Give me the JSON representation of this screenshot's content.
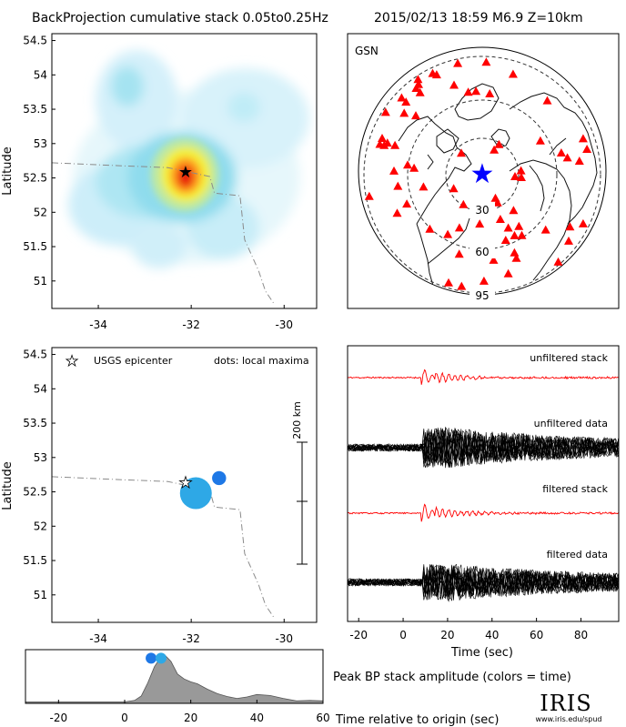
{
  "header": {
    "title": "BackProjection cumulative stack 0.05to0.25Hz",
    "event": "2015/02/13 18:59  M6.9  Z=10km"
  },
  "colors": {
    "stack_trace": "#ff0000",
    "data_trace": "#000000",
    "station_marker": "#ff0000",
    "event_marker": "#0000ff",
    "maxima_early": "#1e78e6",
    "maxima_late": "#2ea8e6",
    "envelope_fill": "#999999"
  },
  "chart_data": [
    {
      "type": "heatmap",
      "panel": "top-left",
      "ylabel": "Latitude",
      "xlabel": "",
      "xlim": [
        -35,
        -29.3
      ],
      "ylim": [
        50.6,
        54.6
      ],
      "xticks": [
        -34,
        -32,
        -30
      ],
      "yticks": [
        51,
        51.5,
        52,
        52.5,
        53,
        53.5,
        54,
        54.5
      ],
      "xtick_labels": [
        "-34",
        "-32",
        "-30"
      ],
      "ytick_labels": [
        "51",
        "51.5",
        "52",
        "52.5",
        "53",
        "53.5",
        "54",
        "54.5"
      ],
      "peak": {
        "lon": -31.9,
        "lat": 52.6
      },
      "epicenter": {
        "lon": -31.9,
        "lat": 52.6
      },
      "colormap": [
        "#ffffff",
        "#bff0fb",
        "#77ddee",
        "#b6e9a8",
        "#f6ef3a",
        "#ff9a1e",
        "#e8220e"
      ],
      "boundary": [
        [
          -35,
          52.72
        ],
        [
          -33.6,
          52.68
        ],
        [
          -32.5,
          52.65
        ],
        [
          -31.6,
          52.52
        ],
        [
          -31.5,
          52.28
        ],
        [
          -30.95,
          52.24
        ],
        [
          -30.85,
          51.6
        ],
        [
          -30.55,
          51.15
        ],
        [
          -30.4,
          50.85
        ],
        [
          -30.2,
          50.65
        ]
      ]
    },
    {
      "type": "scatter",
      "panel": "top-right",
      "title": "GSN",
      "distance_rings": [
        "30",
        "60",
        "95"
      ],
      "station_count": 72
    },
    {
      "type": "scatter",
      "panel": "middle-left",
      "ylabel": "Latitude",
      "xlim": [
        -35,
        -29.3
      ],
      "ylim": [
        50.6,
        54.6
      ],
      "xticks": [
        -34,
        -32,
        -30
      ],
      "yticks": [
        51,
        51.5,
        52,
        52.5,
        53,
        53.5,
        54,
        54.5
      ],
      "xtick_labels": [
        "-34",
        "-32",
        "-30"
      ],
      "ytick_labels": [
        "51",
        "51.5",
        "52",
        "52.5",
        "53",
        "53.5",
        "54",
        "54.5"
      ],
      "legend_epicenter": "USGS epicenter",
      "legend_maxima": "dots: local maxima",
      "scale_label": "200 km",
      "epicenter": {
        "lon": -31.9,
        "lat": 52.6
      },
      "local_maxima": [
        {
          "lon": -31.9,
          "lat": 52.48,
          "time": 11,
          "amplitude": 1.0
        },
        {
          "lon": -31.4,
          "lat": 52.7,
          "time": 8,
          "amplitude": 0.3
        }
      ]
    },
    {
      "type": "line",
      "panel": "middle-right",
      "xlabel": "Time (sec)",
      "xlim": [
        -25,
        97
      ],
      "xticks": [
        -20,
        0,
        20,
        40,
        60,
        80
      ],
      "xtick_labels": [
        "-20",
        "0",
        "20",
        "40",
        "60",
        "80"
      ],
      "rows": [
        "unfiltered stack",
        "unfiltered data",
        "filtered stack",
        "filtered data"
      ],
      "onset_time": 9
    },
    {
      "type": "area",
      "panel": "bottom",
      "title": "Peak BP stack amplitude (colors = time)",
      "xlabel": "Time relative to origin (sec)",
      "xlim": [
        -30,
        60
      ],
      "xticks": [
        -20,
        0,
        20,
        40,
        60
      ],
      "xtick_labels": [
        "-20",
        "0",
        "20",
        "40",
        "60"
      ],
      "ylim": [
        0,
        1.1
      ],
      "x": [
        -30,
        0,
        3,
        5,
        7,
        9,
        11,
        12,
        14,
        16,
        18,
        20,
        22,
        25,
        28,
        31,
        34,
        37,
        40,
        44,
        48,
        52,
        56,
        60
      ],
      "values": [
        0.03,
        0.03,
        0.06,
        0.15,
        0.42,
        0.75,
        0.96,
        1.0,
        0.86,
        0.6,
        0.5,
        0.44,
        0.4,
        0.29,
        0.2,
        0.14,
        0.1,
        0.13,
        0.18,
        0.16,
        0.1,
        0.05,
        0.06,
        0.05
      ],
      "maxima": [
        {
          "time": 8,
          "amplitude": 1.0
        },
        {
          "time": 11,
          "amplitude": 1.0
        }
      ]
    }
  ],
  "footer": {
    "logo_text": "IRIS",
    "logo_url": "www.iris.edu/spud"
  }
}
